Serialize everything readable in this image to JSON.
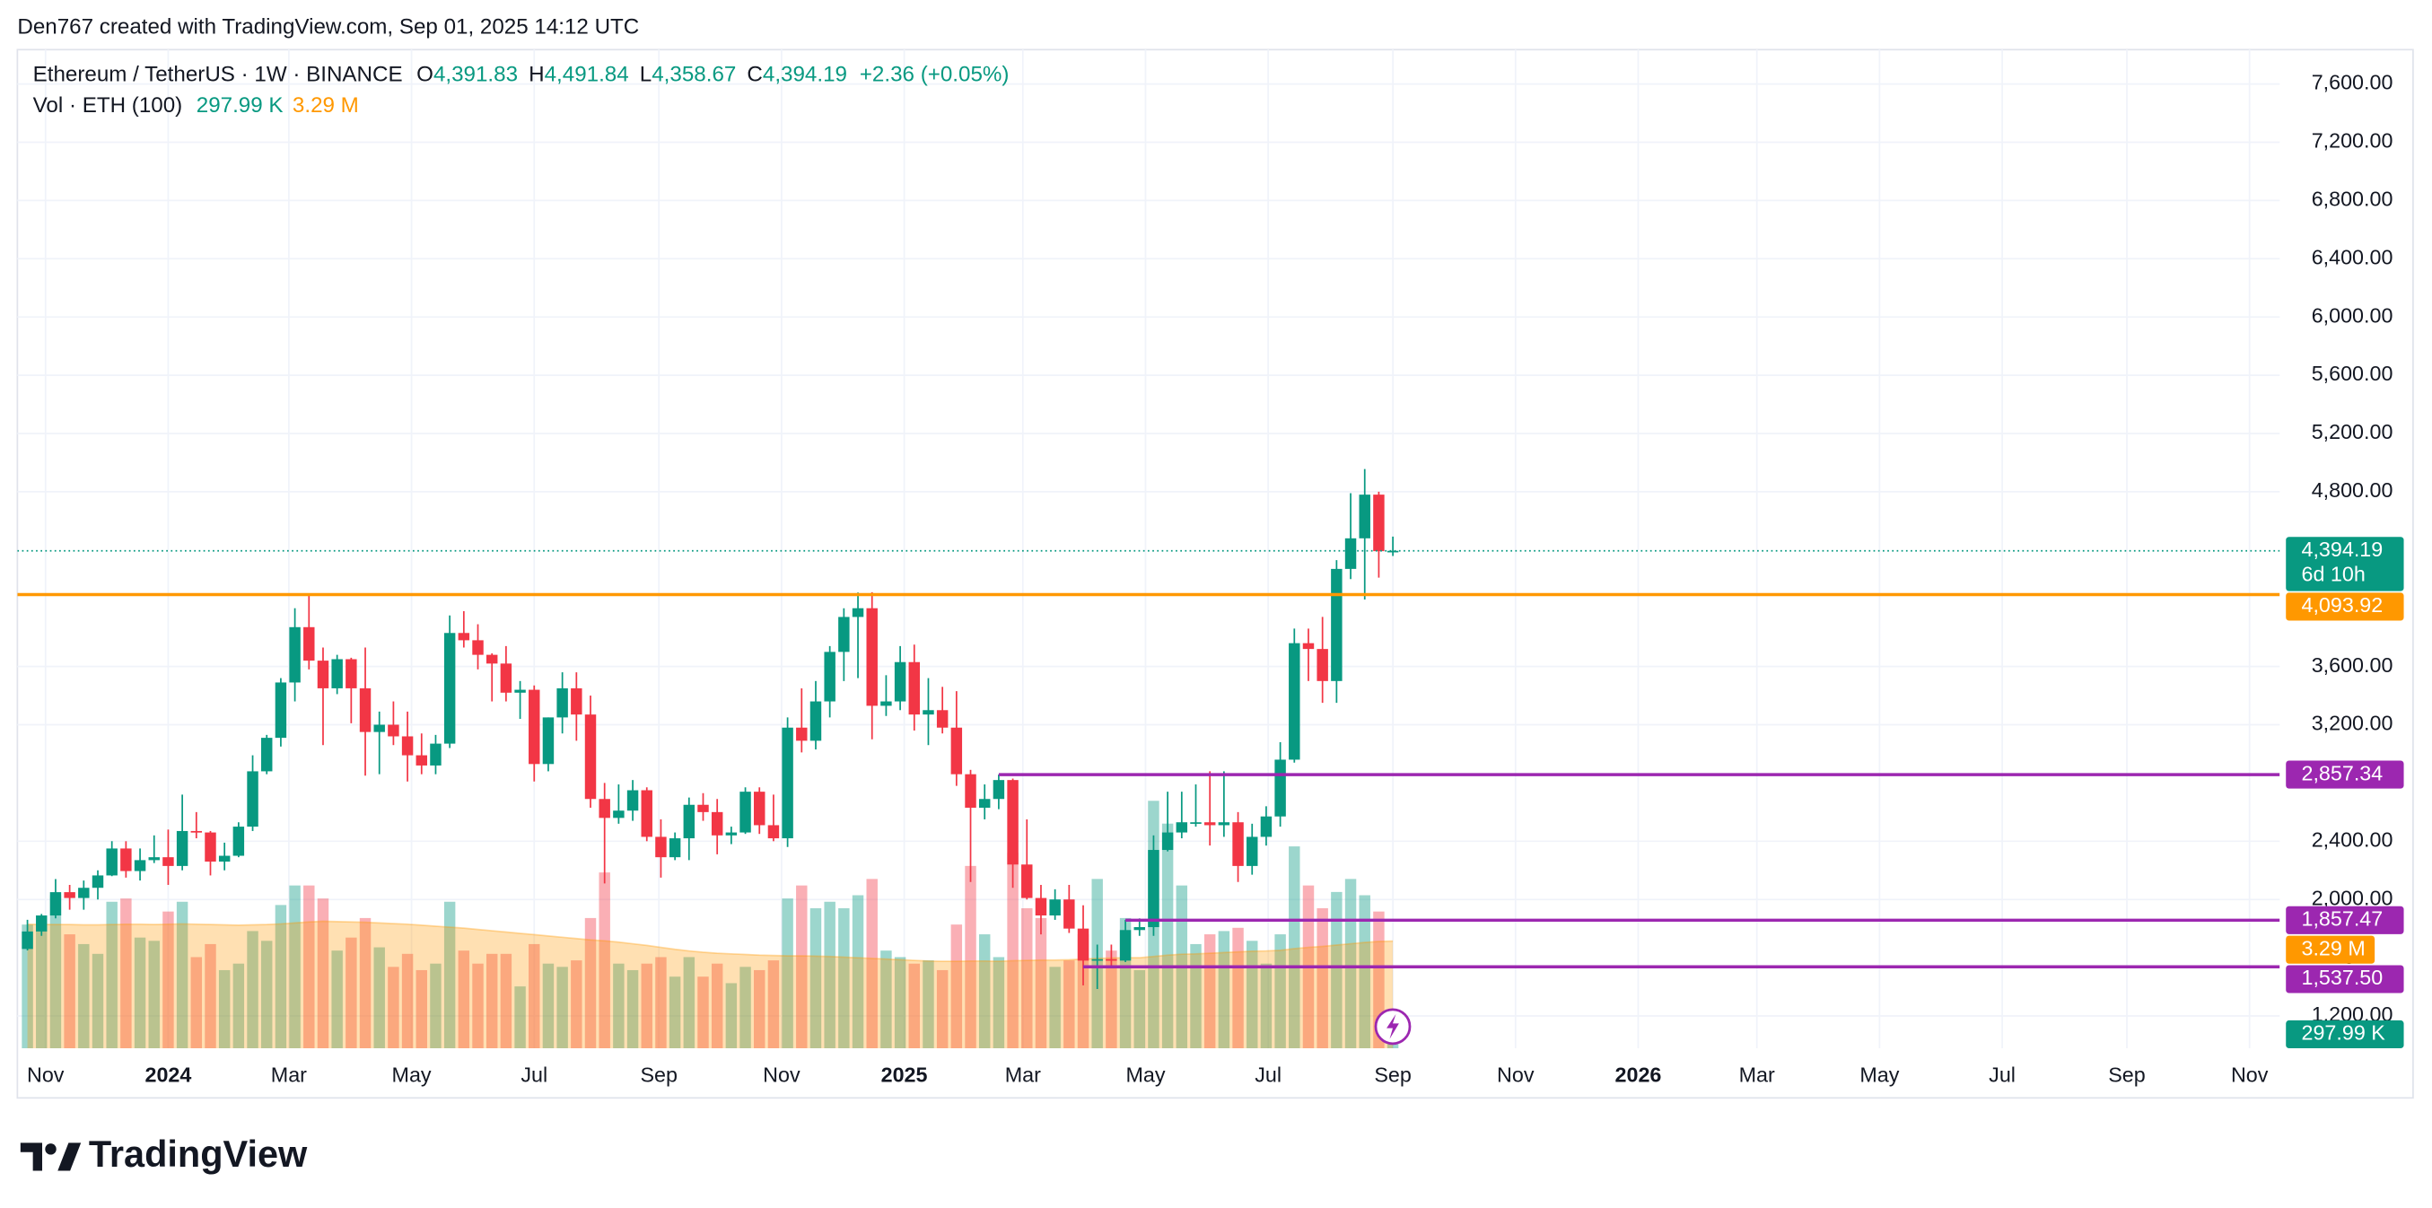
{
  "header": {
    "credit": "Den767 created with TradingView.com, Sep 01, 2025 14:12 UTC",
    "footer_logo": "TradingView"
  },
  "chart_data": {
    "type": "candlestick",
    "title": "Ethereum / TetherUS · 1W · BINANCE",
    "ohlc_labels": [
      {
        "key": "O",
        "label": "4,391.83"
      },
      {
        "key": "H",
        "label": "4,491.84"
      },
      {
        "key": "L",
        "label": "4,358.67"
      },
      {
        "key": "C",
        "label": "4,394.19"
      }
    ],
    "change_label": "+2.36 (+0.05%)",
    "x": [
      "2023-10-23",
      "2023-10-30",
      "2023-11-06",
      "2023-11-13",
      "2023-11-20",
      "2023-11-27",
      "2023-12-04",
      "2023-12-11",
      "2023-12-18",
      "2023-12-25",
      "2024-01-01",
      "2024-01-08",
      "2024-01-15",
      "2024-01-22",
      "2024-01-29",
      "2024-02-05",
      "2024-02-12",
      "2024-02-19",
      "2024-02-26",
      "2024-03-04",
      "2024-03-11",
      "2024-03-18",
      "2024-03-25",
      "2024-04-01",
      "2024-04-08",
      "2024-04-15",
      "2024-04-22",
      "2024-04-29",
      "2024-05-06",
      "2024-05-13",
      "2024-05-20",
      "2024-05-27",
      "2024-06-03",
      "2024-06-10",
      "2024-06-17",
      "2024-06-24",
      "2024-07-01",
      "2024-07-08",
      "2024-07-15",
      "2024-07-22",
      "2024-07-29",
      "2024-08-05",
      "2024-08-12",
      "2024-08-19",
      "2024-08-26",
      "2024-09-02",
      "2024-09-09",
      "2024-09-16",
      "2024-09-23",
      "2024-09-30",
      "2024-10-07",
      "2024-10-14",
      "2024-10-21",
      "2024-10-28",
      "2024-11-04",
      "2024-11-11",
      "2024-11-18",
      "2024-11-25",
      "2024-12-02",
      "2024-12-09",
      "2024-12-16",
      "2024-12-23",
      "2024-12-30",
      "2025-01-06",
      "2025-01-13",
      "2025-01-20",
      "2025-01-27",
      "2025-02-03",
      "2025-02-10",
      "2025-02-17",
      "2025-02-24",
      "2025-03-03",
      "2025-03-10",
      "2025-03-17",
      "2025-03-24",
      "2025-03-31",
      "2025-04-07",
      "2025-04-14",
      "2025-04-21",
      "2025-04-28",
      "2025-05-05",
      "2025-05-12",
      "2025-05-19",
      "2025-05-26",
      "2025-06-02",
      "2025-06-09",
      "2025-06-16",
      "2025-06-23",
      "2025-06-30",
      "2025-07-07",
      "2025-07-14",
      "2025-07-21",
      "2025-07-28",
      "2025-08-04",
      "2025-08-11",
      "2025-08-18",
      "2025-08-25",
      "2025-09-01"
    ],
    "open": [
      1660,
      1780,
      1890,
      2050,
      2010,
      2080,
      2165,
      2350,
      2195,
      2270,
      2290,
      2230,
      2470,
      2460,
      2260,
      2300,
      2500,
      2880,
      3110,
      3490,
      3870,
      3640,
      3450,
      3650,
      3450,
      3150,
      3200,
      3120,
      2990,
      2920,
      3070,
      3830,
      3780,
      3680,
      3620,
      3420,
      3440,
      2930,
      3250,
      3450,
      3270,
      2690,
      2560,
      2610,
      2750,
      2430,
      2290,
      2420,
      2650,
      2600,
      2440,
      2460,
      2740,
      2510,
      2420,
      3180,
      3090,
      3360,
      3700,
      3940,
      4000,
      3330,
      3360,
      3630,
      3270,
      3300,
      3180,
      2860,
      2630,
      2690,
      2820,
      2240,
      2010,
      1890,
      2000,
      1800,
      1580,
      1590,
      1580,
      1790,
      1810,
      2340,
      2460,
      2530,
      2530,
      2510,
      2530,
      2230,
      2430,
      2570,
      2960,
      3760,
      3720,
      3500,
      4270,
      4480,
      4780,
      4391.83
    ],
    "high": [
      1860,
      1900,
      2140,
      2100,
      2130,
      2200,
      2400,
      2400,
      2350,
      2440,
      2480,
      2720,
      2600,
      2470,
      2390,
      2530,
      2990,
      3130,
      3520,
      4000,
      4093.92,
      3730,
      3680,
      3660,
      3730,
      3290,
      3360,
      3290,
      3140,
      3130,
      3950,
      3980,
      3890,
      3690,
      3740,
      3500,
      3470,
      3250,
      3560,
      3560,
      3400,
      2800,
      2790,
      2820,
      2770,
      2550,
      2460,
      2700,
      2730,
      2690,
      2500,
      2770,
      2770,
      2720,
      3250,
      3450,
      3500,
      3740,
      4000,
      4108,
      4110,
      3540,
      3740,
      3750,
      3520,
      3460,
      3430,
      2890,
      2790,
      2857.34,
      2830,
      2550,
      2100,
      2070,
      2100,
      1960,
      1690,
      1690,
      1860,
      1870,
      2440,
      2740,
      2740,
      2790,
      2880,
      2880,
      2600,
      2520,
      2640,
      3080,
      3860,
      3860,
      3940,
      4330,
      4790,
      4956,
      4800,
      4491.84
    ],
    "low": [
      1650,
      1750,
      1870,
      1930,
      1930,
      2000,
      2160,
      2150,
      2130,
      2250,
      2100,
      2200,
      2420,
      2165,
      2200,
      2290,
      2470,
      2860,
      3050,
      3360,
      3580,
      3060,
      3410,
      3210,
      2850,
      2860,
      3060,
      2810,
      2860,
      2860,
      3040,
      3730,
      3580,
      3360,
      3360,
      3240,
      2810,
      2880,
      3140,
      3090,
      2630,
      2110,
      2520,
      2540,
      2400,
      2150,
      2270,
      2270,
      2540,
      2310,
      2380,
      2450,
      2450,
      2400,
      2360,
      3010,
      3030,
      3250,
      3500,
      3520,
      3100,
      3260,
      3300,
      3160,
      3060,
      3140,
      2780,
      2120,
      2550,
      2620,
      2080,
      2000,
      1760,
      1860,
      1770,
      1410,
      1385,
      1540,
      1570,
      1750,
      1750,
      2330,
      2420,
      2500,
      2370,
      2430,
      2120,
      2170,
      2370,
      2500,
      2940,
      3500,
      3350,
      3350,
      4200,
      4060,
      4210,
      4358.67
    ],
    "close": [
      1780,
      1890,
      2050,
      2010,
      2080,
      2165,
      2350,
      2195,
      2270,
      2290,
      2230,
      2470,
      2460,
      2260,
      2300,
      2500,
      2880,
      3110,
      3490,
      3870,
      3640,
      3450,
      3650,
      3450,
      3150,
      3200,
      3120,
      2990,
      2920,
      3070,
      3830,
      3780,
      3680,
      3620,
      3420,
      3440,
      2930,
      3250,
      3450,
      3270,
      2690,
      2560,
      2610,
      2750,
      2430,
      2290,
      2420,
      2650,
      2600,
      2440,
      2460,
      2740,
      2510,
      2420,
      3180,
      3090,
      3360,
      3700,
      3940,
      4000,
      3330,
      3360,
      3630,
      3270,
      3300,
      3180,
      2860,
      2630,
      2690,
      2820,
      2240,
      2010,
      1890,
      2000,
      1800,
      1580,
      1590,
      1580,
      1790,
      1810,
      2340,
      2460,
      2530,
      2530,
      2510,
      2530,
      2230,
      2430,
      2570,
      2960,
      3760,
      3720,
      3500,
      4270,
      4480,
      4780,
      4391.83,
      4394.19
    ],
    "up_color": "#089981",
    "down_color": "#f23645",
    "volume": {
      "name": "Vol · ETH (100)",
      "values": [
        3800000,
        3600000,
        4700000,
        3500000,
        3200000,
        2900000,
        4500000,
        4600000,
        3400000,
        3300000,
        4200000,
        4500000,
        2800000,
        3200000,
        2400000,
        2600000,
        3600000,
        3300000,
        4400000,
        5000000,
        5000000,
        4600000,
        3000000,
        3400000,
        4000000,
        3100000,
        2500000,
        2900000,
        2400000,
        2600000,
        4500000,
        3000000,
        2600000,
        2900000,
        2900000,
        1900000,
        3200000,
        2600000,
        2500000,
        2700000,
        4000000,
        5400000,
        2600000,
        2400000,
        2600000,
        2800000,
        2200000,
        2800000,
        2200000,
        2600000,
        2000000,
        2500000,
        2400000,
        2700000,
        4600000,
        5000000,
        4300000,
        4500000,
        4300000,
        4700000,
        5200000,
        3000000,
        2800000,
        2600000,
        2700000,
        2400000,
        3800000,
        5600000,
        3500000,
        2800000,
        6000000,
        4300000,
        4000000,
        2500000,
        2700000,
        3500000,
        5200000,
        3000000,
        4000000,
        2400000,
        7600000,
        6900000,
        5000000,
        3200000,
        3500000,
        3600000,
        3700000,
        3300000,
        2600000,
        3500000,
        6200000,
        5000000,
        4300000,
        4800000,
        5200000,
        4700000,
        4200000,
        297990
      ],
      "last_label": "297.99 K",
      "ma": [
        3810000,
        3800000,
        3800000,
        3800000,
        3790000,
        3790000,
        3800000,
        3810000,
        3810000,
        3800000,
        3810000,
        3820000,
        3810000,
        3800000,
        3790000,
        3780000,
        3790000,
        3800000,
        3820000,
        3850000,
        3880000,
        3900000,
        3890000,
        3880000,
        3870000,
        3850000,
        3830000,
        3810000,
        3780000,
        3750000,
        3720000,
        3690000,
        3650000,
        3610000,
        3570000,
        3530000,
        3490000,
        3450000,
        3410000,
        3370000,
        3330000,
        3300000,
        3260000,
        3210000,
        3160000,
        3100000,
        3040000,
        2990000,
        2950000,
        2920000,
        2900000,
        2880000,
        2860000,
        2850000,
        2840000,
        2840000,
        2830000,
        2820000,
        2800000,
        2780000,
        2760000,
        2740000,
        2720000,
        2700000,
        2680000,
        2670000,
        2670000,
        2680000,
        2680000,
        2670000,
        2690000,
        2700000,
        2710000,
        2710000,
        2720000,
        2740000,
        2760000,
        2770000,
        2780000,
        2780000,
        2820000,
        2860000,
        2890000,
        2900000,
        2920000,
        2940000,
        2960000,
        2980000,
        2990000,
        3010000,
        3060000,
        3100000,
        3130000,
        3170000,
        3210000,
        3250000,
        3280000,
        3290000
      ],
      "ma_last_label": "3.29 M",
      "ma_color": "#ff9800",
      "ylim": [
        0,
        30670000
      ],
      "axis_label": "0"
    },
    "last_price": {
      "label": "4,394.19",
      "countdown": "6d 10h"
    },
    "levels": [
      {
        "value": 4093.92,
        "label": "4,093.92",
        "color": "#ff9800"
      },
      {
        "value": 2857.34,
        "label": "2,857.34",
        "color": "#9c27b0",
        "start": "2025-02-17"
      },
      {
        "value": 1857.47,
        "label": "1,857.47",
        "color": "#9c27b0",
        "start": "2025-04-21"
      },
      {
        "value": 1537.5,
        "label": "1,537.50",
        "color": "#9c27b0",
        "start": "2025-03-31"
      }
    ],
    "xlim": [
      "2023-10-18",
      "2026-11-16"
    ],
    "xticks": [
      {
        "value": "2023-11-01",
        "label": "Nov"
      },
      {
        "value": "2024-01-01",
        "label": "2024"
      },
      {
        "value": "2024-03-01",
        "label": "Mar"
      },
      {
        "value": "2024-05-01",
        "label": "May"
      },
      {
        "value": "2024-07-01",
        "label": "Jul"
      },
      {
        "value": "2024-09-01",
        "label": "Sep"
      },
      {
        "value": "2024-11-01",
        "label": "Nov"
      },
      {
        "value": "2025-01-01",
        "label": "2025"
      },
      {
        "value": "2025-03-01",
        "label": "Mar"
      },
      {
        "value": "2025-05-01",
        "label": "May"
      },
      {
        "value": "2025-07-01",
        "label": "Jul"
      },
      {
        "value": "2025-09-01",
        "label": "Sep"
      },
      {
        "value": "2025-11-01",
        "label": "Nov"
      },
      {
        "value": "2026-01-01",
        "label": "2026"
      },
      {
        "value": "2026-03-01",
        "label": "Mar"
      },
      {
        "value": "2026-05-01",
        "label": "May"
      },
      {
        "value": "2026-07-01",
        "label": "Jul"
      },
      {
        "value": "2026-09-01",
        "label": "Sep"
      },
      {
        "value": "2026-11-01",
        "label": "Nov"
      }
    ],
    "ylim": [
      978,
      7836
    ],
    "yticks": [
      {
        "value": 1200,
        "label": "1,200.00"
      },
      {
        "value": 2000,
        "label": "2,000.00"
      },
      {
        "value": 2400,
        "label": "2,400.00"
      },
      {
        "value": 3200,
        "label": "3,200.00"
      },
      {
        "value": 3600,
        "label": "3,600.00"
      },
      {
        "value": 4800,
        "label": "4,800.00"
      },
      {
        "value": 5200,
        "label": "5,200.00"
      },
      {
        "value": 5600,
        "label": "5,600.00"
      },
      {
        "value": 6000,
        "label": "6,000.00"
      },
      {
        "value": 6400,
        "label": "6,400.00"
      },
      {
        "value": 6800,
        "label": "6,800.00"
      },
      {
        "value": 7200,
        "label": "7,200.00"
      },
      {
        "value": 7600,
        "label": "7,600.00"
      }
    ],
    "grid": true
  }
}
